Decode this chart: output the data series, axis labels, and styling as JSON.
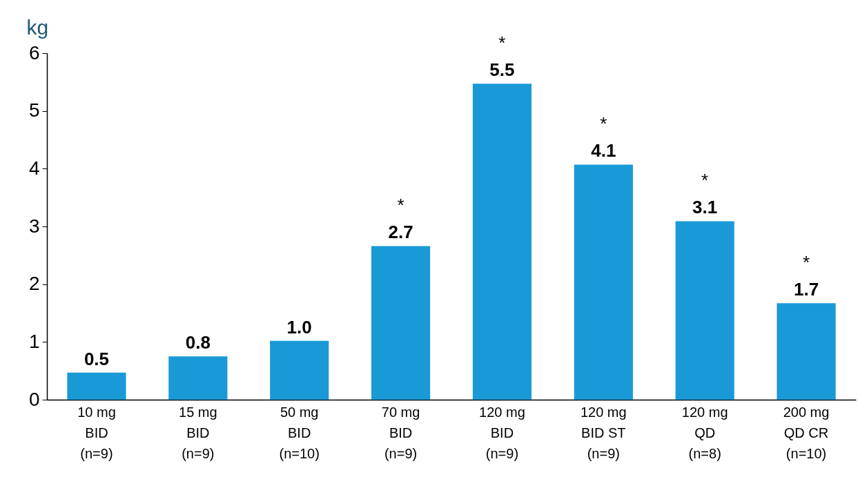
{
  "chart_data": {
    "type": "bar",
    "ylabel": "kg",
    "categories": [
      "10 mg\nBID\n(n=9)",
      "15 mg\nBID\n(n=9)",
      "50 mg\nBID\n(n=10)",
      "70 mg\nBID\n(n=9)",
      "120 mg\nBID\n(n=9)",
      "120 mg\nBID ST\n(n=9)",
      "120 mg\nQD\n(n=8)",
      "200 mg\nQD CR\n(n=10)"
    ],
    "values": [
      0.47,
      0.75,
      1.02,
      2.66,
      5.47,
      4.07,
      3.09,
      1.67
    ],
    "value_labels": [
      "0.5",
      "0.8",
      "1.0",
      "2.7",
      "5.5",
      "4.1",
      "3.1",
      "1.7"
    ],
    "color": "#199ad6",
    "ylim": [
      0,
      6
    ],
    "yticks": [
      0,
      1,
      2,
      3,
      4,
      5,
      6
    ],
    "grid": false,
    "annotations": [
      {
        "text": "*",
        "x": "70 mg\nBID\n(n=9)",
        "y": 2.66
      },
      {
        "text": "*",
        "x": "120 mg\nBID\n(n=9)",
        "y": 5.47
      },
      {
        "text": "*",
        "x": "120 mg\nBID ST\n(n=9)",
        "y": 4.07
      },
      {
        "text": "*",
        "x": "120 mg\nQD\n(n=8)",
        "y": 3.09
      },
      {
        "text": "*",
        "x": "200 mg\nQD CR\n(n=10)",
        "y": 1.67
      }
    ]
  }
}
